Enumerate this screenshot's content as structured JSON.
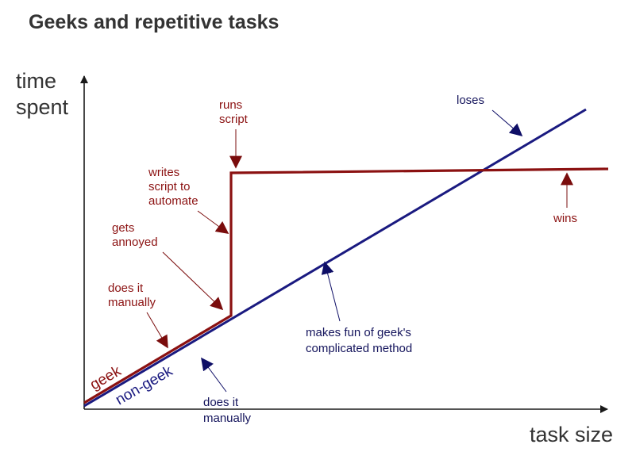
{
  "title": "Geeks and repetitive tasks",
  "axes": {
    "y_label_lines": [
      "time",
      "spent"
    ],
    "x_label": "task size"
  },
  "series": {
    "geek": {
      "label": "geek",
      "color": "#8b1111"
    },
    "non_geek": {
      "label": "non-geek",
      "color": "#1a1a80"
    }
  },
  "annotations": {
    "geek_manual": [
      "does it",
      "manually"
    ],
    "gets_annoyed": [
      "gets",
      "annoyed"
    ],
    "writes_script": [
      "writes",
      "script to",
      "automate"
    ],
    "runs_script": [
      "runs",
      "script"
    ],
    "wins": [
      "wins"
    ],
    "loses": [
      "loses"
    ],
    "makes_fun": [
      "makes fun of geek's",
      "complicated method"
    ],
    "nongeek_manual": [
      "does it",
      "manually"
    ]
  },
  "colors": {
    "axis": "#1a1a1a",
    "geek_annotation": "#8b1111",
    "nongeek_annotation": "#14145c",
    "arrow_head_red": "#7a0c0c",
    "arrow_head_blue": "#0e0e66"
  }
}
